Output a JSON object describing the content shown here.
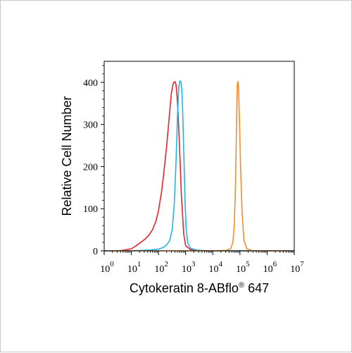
{
  "chart_data": {
    "type": "line",
    "title": "",
    "xlabel": "Cytokeratin 8-ABflo",
    "xlabel_superscript": "®",
    "xlabel_suffix": " 647",
    "ylabel": "Relative Cell Number",
    "x_scale": "log",
    "xlim": [
      1,
      10000000
    ],
    "ylim": [
      0,
      450
    ],
    "grid": false,
    "legend": "none",
    "y_ticks": [
      0,
      100,
      200,
      300,
      400
    ],
    "x_ticks": [
      {
        "value": 1,
        "base": "10",
        "exp": "0"
      },
      {
        "value": 10,
        "base": "10",
        "exp": "1"
      },
      {
        "value": 100,
        "base": "10",
        "exp": "2"
      },
      {
        "value": 1000,
        "base": "10",
        "exp": "3"
      },
      {
        "value": 10000,
        "base": "10",
        "exp": "4"
      },
      {
        "value": 100000,
        "base": "10",
        "exp": "5"
      },
      {
        "value": 1000000,
        "base": "10",
        "exp": "6"
      },
      {
        "value": 10000000,
        "base": "10",
        "exp": "7"
      }
    ],
    "series": [
      {
        "color": "#e8232a",
        "x": [
          1,
          3,
          6,
          10,
          15,
          22,
          32,
          45,
          60,
          80,
          100,
          130,
          160,
          200,
          250,
          300,
          350,
          400,
          440,
          480,
          520,
          600,
          700,
          850,
          1000,
          1500,
          3000,
          10000,
          10000000
        ],
        "y": [
          0,
          0,
          2,
          5,
          12,
          20,
          28,
          38,
          50,
          70,
          95,
          140,
          190,
          250,
          320,
          375,
          398,
          402,
          395,
          370,
          330,
          240,
          130,
          40,
          12,
          3,
          1,
          0,
          0
        ]
      },
      {
        "color": "#22b5e4",
        "x": [
          1,
          10,
          50,
          100,
          150,
          200,
          260,
          320,
          380,
          440,
          500,
          560,
          620,
          680,
          740,
          800,
          880,
          960,
          1050,
          1200,
          1500,
          2500,
          5000,
          10000000
        ],
        "y": [
          0,
          0,
          2,
          4,
          8,
          14,
          25,
          50,
          110,
          210,
          320,
          390,
          404,
          400,
          370,
          300,
          200,
          110,
          50,
          18,
          6,
          2,
          0,
          0
        ]
      },
      {
        "color": "#f28e2b",
        "x": [
          1,
          10000,
          30000,
          45000,
          55000,
          62000,
          68000,
          73000,
          77000,
          80000,
          84000,
          88000,
          95000,
          105000,
          120000,
          140000,
          180000,
          300000,
          10000000
        ],
        "y": [
          0,
          0,
          1,
          5,
          20,
          60,
          150,
          260,
          350,
          395,
          402,
          390,
          320,
          200,
          90,
          25,
          5,
          0,
          0
        ]
      }
    ]
  }
}
